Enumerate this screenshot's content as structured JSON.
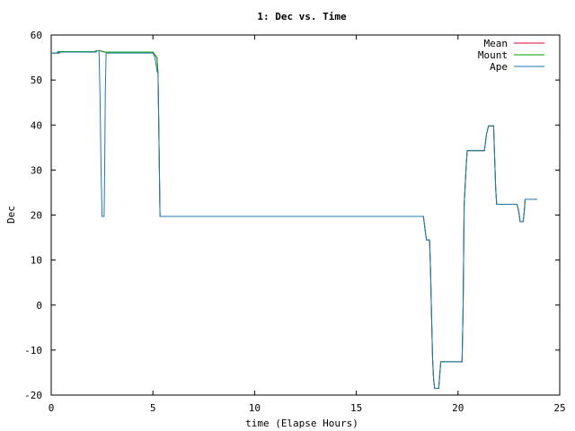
{
  "chart_data": {
    "type": "line",
    "title": "1: Dec vs. Time",
    "xlabel": "time (Elapse Hours)",
    "ylabel": "Dec",
    "xlim": [
      0,
      25
    ],
    "ylim": [
      -20,
      60
    ],
    "xticks": [
      0,
      5,
      10,
      15,
      20,
      25
    ],
    "yticks": [
      -20,
      -10,
      0,
      10,
      20,
      30,
      40,
      50,
      60
    ],
    "grid": false,
    "legend": "top-right",
    "series": [
      {
        "name": "Mean",
        "color": "#e0002a",
        "points": [
          [
            0.0,
            56.0
          ],
          [
            0.4,
            56.0
          ],
          [
            0.4,
            56.2
          ],
          [
            2.2,
            56.2
          ],
          [
            2.2,
            56.5
          ],
          [
            2.4,
            56.5
          ],
          [
            2.55,
            56.3
          ],
          [
            2.65,
            56.2
          ],
          [
            5.0,
            56.2
          ],
          [
            5.2,
            55.0
          ],
          [
            5.25,
            51.5
          ],
          [
            5.3,
            36.0
          ],
          [
            5.35,
            19.7
          ],
          [
            18.3,
            19.7
          ],
          [
            18.4,
            16.0
          ],
          [
            18.45,
            14.5
          ],
          [
            18.6,
            14.5
          ],
          [
            18.65,
            8.0
          ],
          [
            18.7,
            -3.0
          ],
          [
            18.75,
            -12.0
          ],
          [
            18.8,
            -16.5
          ],
          [
            18.85,
            -18.5
          ],
          [
            19.05,
            -18.5
          ],
          [
            19.15,
            -12.6
          ],
          [
            20.2,
            -12.6
          ],
          [
            20.25,
            0.0
          ],
          [
            20.3,
            22.0
          ],
          [
            20.4,
            31.0
          ],
          [
            20.45,
            34.3
          ],
          [
            21.3,
            34.3
          ],
          [
            21.4,
            38.0
          ],
          [
            21.5,
            39.8
          ],
          [
            21.75,
            39.8
          ],
          [
            21.85,
            26.0
          ],
          [
            21.9,
            22.4
          ],
          [
            22.9,
            22.4
          ],
          [
            23.0,
            20.5
          ],
          [
            23.05,
            18.5
          ],
          [
            23.2,
            18.5
          ],
          [
            23.25,
            20.5
          ],
          [
            23.3,
            23.5
          ],
          [
            23.9,
            23.5
          ]
        ]
      },
      {
        "name": "Mount",
        "color": "#00a000",
        "points": [
          [
            0.0,
            56.0
          ],
          [
            0.35,
            56.0
          ],
          [
            0.35,
            56.3
          ],
          [
            2.2,
            56.3
          ],
          [
            2.2,
            56.5
          ],
          [
            2.4,
            56.5
          ],
          [
            2.55,
            56.3
          ],
          [
            2.65,
            56.2
          ],
          [
            5.0,
            56.2
          ],
          [
            5.2,
            55.0
          ],
          [
            5.25,
            51.5
          ],
          [
            5.3,
            36.0
          ],
          [
            5.35,
            19.7
          ],
          [
            18.3,
            19.7
          ],
          [
            18.4,
            16.0
          ],
          [
            18.45,
            14.5
          ],
          [
            18.6,
            14.5
          ],
          [
            18.65,
            8.0
          ],
          [
            18.7,
            -3.0
          ],
          [
            18.75,
            -12.0
          ],
          [
            18.8,
            -16.5
          ],
          [
            18.85,
            -18.5
          ],
          [
            19.05,
            -18.5
          ],
          [
            19.15,
            -12.6
          ],
          [
            20.2,
            -12.6
          ],
          [
            20.25,
            0.0
          ],
          [
            20.3,
            22.0
          ],
          [
            20.4,
            31.0
          ],
          [
            20.45,
            34.3
          ],
          [
            21.3,
            34.3
          ],
          [
            21.4,
            38.0
          ],
          [
            21.5,
            39.8
          ],
          [
            21.75,
            39.8
          ],
          [
            21.85,
            26.0
          ],
          [
            21.9,
            22.4
          ],
          [
            22.9,
            22.4
          ],
          [
            23.0,
            20.5
          ],
          [
            23.05,
            18.5
          ],
          [
            23.2,
            18.5
          ],
          [
            23.25,
            20.5
          ],
          [
            23.3,
            23.5
          ],
          [
            23.9,
            23.5
          ]
        ]
      },
      {
        "name": "Ape",
        "color": "#1f77b4",
        "points": [
          [
            0.0,
            56.0
          ],
          [
            0.3,
            56.0
          ],
          [
            0.3,
            56.2
          ],
          [
            2.2,
            56.2
          ],
          [
            2.25,
            56.5
          ],
          [
            2.35,
            56.5
          ],
          [
            2.4,
            47.0
          ],
          [
            2.45,
            30.0
          ],
          [
            2.5,
            19.7
          ],
          [
            2.6,
            19.7
          ],
          [
            2.63,
            30.0
          ],
          [
            2.66,
            47.0
          ],
          [
            2.7,
            56.0
          ],
          [
            5.0,
            56.0
          ],
          [
            5.1,
            55.0
          ],
          [
            5.2,
            52.0
          ],
          [
            5.25,
            51.5
          ],
          [
            5.3,
            36.0
          ],
          [
            5.35,
            19.7
          ],
          [
            18.3,
            19.7
          ],
          [
            18.4,
            16.0
          ],
          [
            18.45,
            14.5
          ],
          [
            18.6,
            14.5
          ],
          [
            18.65,
            8.0
          ],
          [
            18.7,
            -3.0
          ],
          [
            18.75,
            -12.0
          ],
          [
            18.8,
            -16.5
          ],
          [
            18.85,
            -18.5
          ],
          [
            19.05,
            -18.5
          ],
          [
            19.15,
            -12.6
          ],
          [
            20.2,
            -12.6
          ],
          [
            20.25,
            0.0
          ],
          [
            20.3,
            22.0
          ],
          [
            20.4,
            31.0
          ],
          [
            20.45,
            34.3
          ],
          [
            21.3,
            34.3
          ],
          [
            21.4,
            38.0
          ],
          [
            21.5,
            39.8
          ],
          [
            21.75,
            39.8
          ],
          [
            21.85,
            26.0
          ],
          [
            21.9,
            22.4
          ],
          [
            22.9,
            22.4
          ],
          [
            23.0,
            20.5
          ],
          [
            23.05,
            18.5
          ],
          [
            23.2,
            18.5
          ],
          [
            23.25,
            20.5
          ],
          [
            23.3,
            23.5
          ],
          [
            23.9,
            23.5
          ]
        ]
      }
    ]
  }
}
